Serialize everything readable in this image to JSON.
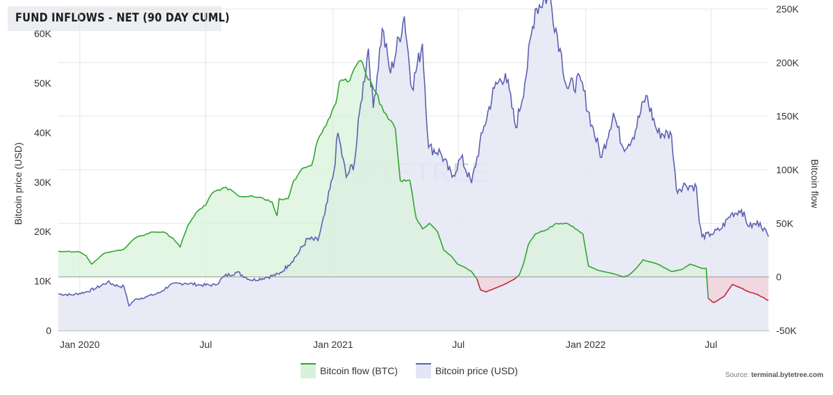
{
  "title": "FUND INFLOWS - NET (90 DAY CUML)",
  "source_prefix": "Source: ",
  "source_site": "terminal.bytetree.com",
  "watermark": "BYTETREE",
  "chart_data": {
    "type": "line",
    "title": "FUND INFLOWS - NET (90 DAY CUML)",
    "x_ticks": [
      "Jan 2020",
      "Jul",
      "Jan 2021",
      "Jul",
      "Jan 2022",
      "Jul"
    ],
    "x_tick_dates": [
      "2020-01-01",
      "2020-07-01",
      "2021-01-01",
      "2021-07-01",
      "2022-01-01",
      "2022-07-01"
    ],
    "xlim": [
      "2019-12-01",
      "2022-09-23"
    ],
    "left_axis": {
      "label": "Bitcoin price (USD)",
      "ylim": [
        0,
        65000
      ],
      "ticks": [
        "0",
        "10K",
        "20K",
        "30K",
        "40K",
        "50K",
        "60K"
      ]
    },
    "right_axis": {
      "label": "Bitcoin flow",
      "ylim": [
        -50000,
        250000
      ],
      "ticks": [
        "-50K",
        "0",
        "50K",
        "100K",
        "150K",
        "200K",
        "250K"
      ]
    },
    "grid": true,
    "legend_position": "bottom-center",
    "colors": {
      "flow": "#2fa52f",
      "flow_fill": "#d9f1d9",
      "flow_negative": "#c0283c",
      "flow_negative_fill": "#f3d4da",
      "price": "#5c5fb1",
      "price_fill": "#e4e6f5"
    },
    "series": [
      {
        "name": "Bitcoin flow (BTC)",
        "axis": "right",
        "points": [
          [
            "2019-12-01",
            24000
          ],
          [
            "2019-12-31",
            23500
          ],
          [
            "2020-01-10",
            20000
          ],
          [
            "2020-01-18",
            12000
          ],
          [
            "2020-02-05",
            22000
          ],
          [
            "2020-02-20",
            24000
          ],
          [
            "2020-03-05",
            26000
          ],
          [
            "2020-03-20",
            36000
          ],
          [
            "2020-04-15",
            42000
          ],
          [
            "2020-05-01",
            42000
          ],
          [
            "2020-05-15",
            36000
          ],
          [
            "2020-05-25",
            28000
          ],
          [
            "2020-06-05",
            48000
          ],
          [
            "2020-06-20",
            62000
          ],
          [
            "2020-07-01",
            67000
          ],
          [
            "2020-07-10",
            78000
          ],
          [
            "2020-07-25",
            83000
          ],
          [
            "2020-08-05",
            82000
          ],
          [
            "2020-08-20",
            75000
          ],
          [
            "2020-09-05",
            76000
          ],
          [
            "2020-09-20",
            74000
          ],
          [
            "2020-10-05",
            70000
          ],
          [
            "2020-10-12",
            57000
          ],
          [
            "2020-10-15",
            73000
          ],
          [
            "2020-10-28",
            73000
          ],
          [
            "2020-11-05",
            90000
          ],
          [
            "2020-11-20",
            102000
          ],
          [
            "2020-12-01",
            104000
          ],
          [
            "2020-12-10",
            128000
          ],
          [
            "2020-12-25",
            147000
          ],
          [
            "2021-01-05",
            162000
          ],
          [
            "2021-01-10",
            182000
          ],
          [
            "2021-01-25",
            183000
          ],
          [
            "2021-02-01",
            195000
          ],
          [
            "2021-02-10",
            202000
          ],
          [
            "2021-02-18",
            188000
          ],
          [
            "2021-03-01",
            175000
          ],
          [
            "2021-03-12",
            160000
          ],
          [
            "2021-03-22",
            147000
          ],
          [
            "2021-04-01",
            138000
          ],
          [
            "2021-04-08",
            90000
          ],
          [
            "2021-04-22",
            90000
          ],
          [
            "2021-05-01",
            55000
          ],
          [
            "2021-05-10",
            45000
          ],
          [
            "2021-05-20",
            50000
          ],
          [
            "2021-06-01",
            42000
          ],
          [
            "2021-06-10",
            25000
          ],
          [
            "2021-06-20",
            20000
          ],
          [
            "2021-06-30",
            12000
          ],
          [
            "2021-07-10",
            9000
          ],
          [
            "2021-07-20",
            5000
          ],
          [
            "2021-07-28",
            -2000
          ],
          [
            "2021-08-02",
            -12000
          ],
          [
            "2021-08-10",
            -14000
          ],
          [
            "2021-08-25",
            -10000
          ],
          [
            "2021-09-05",
            -7000
          ],
          [
            "2021-09-20",
            -2000
          ],
          [
            "2021-09-27",
            2000
          ],
          [
            "2021-10-03",
            12000
          ],
          [
            "2021-10-10",
            30000
          ],
          [
            "2021-10-20",
            40000
          ],
          [
            "2021-11-05",
            44000
          ],
          [
            "2021-11-20",
            50000
          ],
          [
            "2021-12-05",
            50000
          ],
          [
            "2021-12-20",
            44000
          ],
          [
            "2021-12-28",
            40000
          ],
          [
            "2022-01-05",
            10000
          ],
          [
            "2022-01-20",
            6000
          ],
          [
            "2022-02-10",
            3000
          ],
          [
            "2022-02-25",
            0
          ],
          [
            "2022-03-05",
            2000
          ],
          [
            "2022-03-15",
            8000
          ],
          [
            "2022-03-25",
            16000
          ],
          [
            "2022-04-15",
            12000
          ],
          [
            "2022-05-05",
            5000
          ],
          [
            "2022-05-20",
            7000
          ],
          [
            "2022-06-01",
            12000
          ],
          [
            "2022-06-18",
            8000
          ],
          [
            "2022-06-24",
            8000
          ],
          [
            "2022-06-27",
            -20000
          ],
          [
            "2022-07-05",
            -24000
          ],
          [
            "2022-07-20",
            -18000
          ],
          [
            "2022-08-01",
            -7000
          ],
          [
            "2022-08-12",
            -10000
          ],
          [
            "2022-08-25",
            -14000
          ],
          [
            "2022-09-05",
            -16000
          ],
          [
            "2022-09-22",
            -22000
          ]
        ]
      },
      {
        "name": "Bitcoin price (USD)",
        "axis": "left",
        "points": [
          [
            "2019-12-01",
            7400
          ],
          [
            "2019-12-20",
            7200
          ],
          [
            "2020-01-10",
            7800
          ],
          [
            "2020-01-25",
            8600
          ],
          [
            "2020-02-10",
            9800
          ],
          [
            "2020-02-25",
            9000
          ],
          [
            "2020-03-05",
            8900
          ],
          [
            "2020-03-12",
            5000
          ],
          [
            "2020-03-20",
            6200
          ],
          [
            "2020-04-05",
            6800
          ],
          [
            "2020-04-25",
            7600
          ],
          [
            "2020-05-10",
            9200
          ],
          [
            "2020-06-01",
            9600
          ],
          [
            "2020-06-25",
            9200
          ],
          [
            "2020-07-15",
            9200
          ],
          [
            "2020-07-28",
            11000
          ],
          [
            "2020-08-15",
            11800
          ],
          [
            "2020-09-05",
            10200
          ],
          [
            "2020-09-25",
            10700
          ],
          [
            "2020-10-15",
            11400
          ],
          [
            "2020-10-28",
            13200
          ],
          [
            "2020-11-10",
            15300
          ],
          [
            "2020-11-25",
            18500
          ],
          [
            "2020-12-10",
            18200
          ],
          [
            "2020-12-20",
            23500
          ],
          [
            "2021-01-02",
            32000
          ],
          [
            "2021-01-08",
            40000
          ],
          [
            "2021-01-20",
            31000
          ],
          [
            "2021-02-01",
            34000
          ],
          [
            "2021-02-10",
            46000
          ],
          [
            "2021-02-21",
            57000
          ],
          [
            "2021-02-28",
            45000
          ],
          [
            "2021-03-13",
            61000
          ],
          [
            "2021-03-25",
            52000
          ],
          [
            "2021-04-14",
            63500
          ],
          [
            "2021-04-25",
            49000
          ],
          [
            "2021-05-10",
            58000
          ],
          [
            "2021-05-19",
            37000
          ],
          [
            "2021-06-05",
            36000
          ],
          [
            "2021-06-22",
            31000
          ],
          [
            "2021-07-05",
            35000
          ],
          [
            "2021-07-20",
            29800
          ],
          [
            "2021-08-05",
            40000
          ],
          [
            "2021-08-22",
            49000
          ],
          [
            "2021-09-07",
            52000
          ],
          [
            "2021-09-22",
            41000
          ],
          [
            "2021-10-05",
            50000
          ],
          [
            "2021-10-20",
            65000
          ],
          [
            "2021-11-09",
            68000
          ],
          [
            "2021-11-25",
            57000
          ],
          [
            "2021-12-05",
            49000
          ],
          [
            "2021-12-25",
            50500
          ],
          [
            "2022-01-10",
            41500
          ],
          [
            "2022-01-24",
            35000
          ],
          [
            "2022-02-10",
            44000
          ],
          [
            "2022-02-24",
            37000
          ],
          [
            "2022-03-10",
            39000
          ],
          [
            "2022-03-29",
            47500
          ],
          [
            "2022-04-15",
            40000
          ],
          [
            "2022-05-05",
            39500
          ],
          [
            "2022-05-12",
            28500
          ],
          [
            "2022-05-25",
            29500
          ],
          [
            "2022-06-10",
            29000
          ],
          [
            "2022-06-14",
            22000
          ],
          [
            "2022-06-18",
            19000
          ],
          [
            "2022-07-01",
            19500
          ],
          [
            "2022-07-15",
            20500
          ],
          [
            "2022-07-30",
            23500
          ],
          [
            "2022-08-14",
            24400
          ],
          [
            "2022-08-25",
            21000
          ],
          [
            "2022-09-10",
            21800
          ],
          [
            "2022-09-22",
            19000
          ]
        ]
      }
    ]
  }
}
